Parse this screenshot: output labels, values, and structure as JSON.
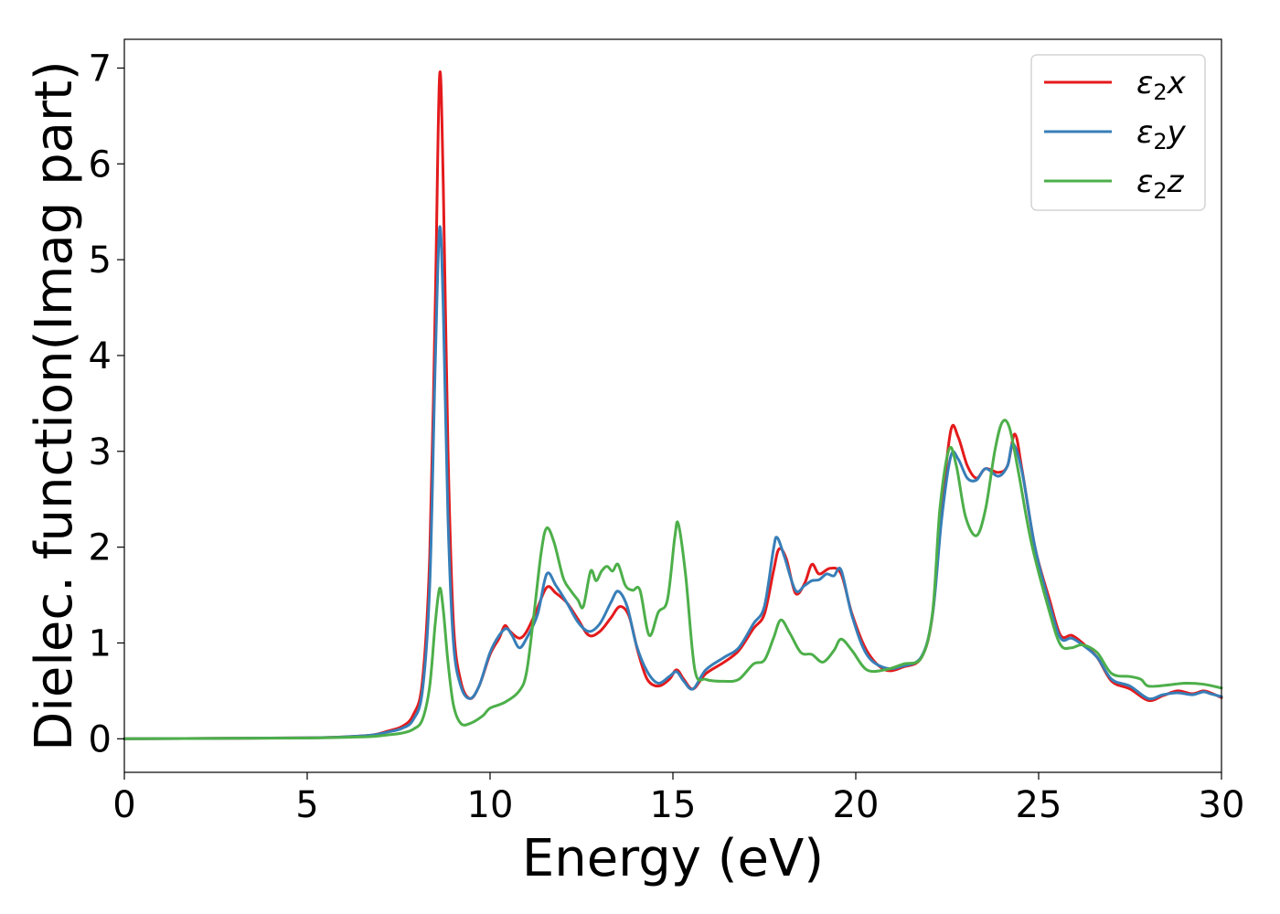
{
  "chart_data": {
    "type": "line",
    "title": "",
    "xlabel": "Energy (eV)",
    "ylabel": "Dielec. function(Imag part)",
    "xlim": [
      0,
      30
    ],
    "ylim": [
      -0.35,
      7.3
    ],
    "xticks": [
      0,
      5,
      10,
      15,
      20,
      25,
      30
    ],
    "yticks": [
      0,
      1,
      2,
      3,
      4,
      5,
      6,
      7
    ],
    "xtick_labels": [
      "0",
      "5",
      "10",
      "15",
      "20",
      "25",
      "30"
    ],
    "ytick_labels": [
      "0",
      "1",
      "2",
      "3",
      "4",
      "5",
      "6",
      "7"
    ],
    "grid": false,
    "legend": {
      "placement": "top-right"
    },
    "series": [
      {
        "name": "ε2x",
        "name_base": "ε",
        "name_sub": "2",
        "name_var": "x",
        "color": "#e41a1c",
        "points": [
          [
            0,
            0
          ],
          [
            3,
            0.005
          ],
          [
            5,
            0.01
          ],
          [
            6,
            0.02
          ],
          [
            6.8,
            0.04
          ],
          [
            7.2,
            0.08
          ],
          [
            7.6,
            0.13
          ],
          [
            7.9,
            0.25
          ],
          [
            8.15,
            0.6
          ],
          [
            8.35,
            1.9
          ],
          [
            8.5,
            4.5
          ],
          [
            8.62,
            6.92
          ],
          [
            8.72,
            5.8
          ],
          [
            8.85,
            3.0
          ],
          [
            9.0,
            1.2
          ],
          [
            9.2,
            0.6
          ],
          [
            9.45,
            0.42
          ],
          [
            9.7,
            0.55
          ],
          [
            10.0,
            0.88
          ],
          [
            10.25,
            1.05
          ],
          [
            10.4,
            1.18
          ],
          [
            10.55,
            1.12
          ],
          [
            10.8,
            1.05
          ],
          [
            11.0,
            1.12
          ],
          [
            11.25,
            1.32
          ],
          [
            11.55,
            1.58
          ],
          [
            11.8,
            1.52
          ],
          [
            12.1,
            1.42
          ],
          [
            12.4,
            1.25
          ],
          [
            12.7,
            1.08
          ],
          [
            13.0,
            1.12
          ],
          [
            13.3,
            1.26
          ],
          [
            13.55,
            1.38
          ],
          [
            13.8,
            1.28
          ],
          [
            14.05,
            0.9
          ],
          [
            14.3,
            0.62
          ],
          [
            14.6,
            0.55
          ],
          [
            14.9,
            0.62
          ],
          [
            15.1,
            0.72
          ],
          [
            15.3,
            0.62
          ],
          [
            15.55,
            0.52
          ],
          [
            15.9,
            0.68
          ],
          [
            16.4,
            0.8
          ],
          [
            16.8,
            0.92
          ],
          [
            17.2,
            1.15
          ],
          [
            17.5,
            1.3
          ],
          [
            17.75,
            1.75
          ],
          [
            17.9,
            1.98
          ],
          [
            18.1,
            1.88
          ],
          [
            18.35,
            1.52
          ],
          [
            18.6,
            1.62
          ],
          [
            18.8,
            1.82
          ],
          [
            19.0,
            1.72
          ],
          [
            19.3,
            1.78
          ],
          [
            19.6,
            1.72
          ],
          [
            19.9,
            1.3
          ],
          [
            20.3,
            0.92
          ],
          [
            20.8,
            0.72
          ],
          [
            21.3,
            0.75
          ],
          [
            21.8,
            0.85
          ],
          [
            22.1,
            1.3
          ],
          [
            22.35,
            2.4
          ],
          [
            22.6,
            3.22
          ],
          [
            22.8,
            3.15
          ],
          [
            23.05,
            2.85
          ],
          [
            23.3,
            2.72
          ],
          [
            23.55,
            2.82
          ],
          [
            23.9,
            2.78
          ],
          [
            24.15,
            2.85
          ],
          [
            24.35,
            3.18
          ],
          [
            24.55,
            2.8
          ],
          [
            24.9,
            2.0
          ],
          [
            25.3,
            1.45
          ],
          [
            25.6,
            1.08
          ],
          [
            25.9,
            1.08
          ],
          [
            26.2,
            1.0
          ],
          [
            26.6,
            0.85
          ],
          [
            27.0,
            0.6
          ],
          [
            27.5,
            0.52
          ],
          [
            28.0,
            0.4
          ],
          [
            28.4,
            0.45
          ],
          [
            28.8,
            0.5
          ],
          [
            29.2,
            0.47
          ],
          [
            29.5,
            0.5
          ],
          [
            29.7,
            0.48
          ],
          [
            30,
            0.43
          ]
        ]
      },
      {
        "name": "ε2y",
        "name_base": "ε",
        "name_sub": "2",
        "name_var": "y",
        "color": "#377eb8",
        "points": [
          [
            0,
            0
          ],
          [
            3,
            0.005
          ],
          [
            5,
            0.01
          ],
          [
            6,
            0.02
          ],
          [
            6.8,
            0.04
          ],
          [
            7.2,
            0.07
          ],
          [
            7.6,
            0.11
          ],
          [
            7.9,
            0.2
          ],
          [
            8.15,
            0.5
          ],
          [
            8.35,
            1.6
          ],
          [
            8.5,
            3.9
          ],
          [
            8.62,
            5.33
          ],
          [
            8.72,
            4.5
          ],
          [
            8.85,
            2.3
          ],
          [
            9.0,
            1.0
          ],
          [
            9.2,
            0.55
          ],
          [
            9.45,
            0.42
          ],
          [
            9.7,
            0.55
          ],
          [
            10.0,
            0.9
          ],
          [
            10.25,
            1.08
          ],
          [
            10.45,
            1.15
          ],
          [
            10.6,
            1.08
          ],
          [
            10.8,
            0.95
          ],
          [
            11.0,
            1.05
          ],
          [
            11.3,
            1.3
          ],
          [
            11.55,
            1.72
          ],
          [
            11.8,
            1.6
          ],
          [
            12.1,
            1.42
          ],
          [
            12.4,
            1.22
          ],
          [
            12.7,
            1.12
          ],
          [
            13.0,
            1.2
          ],
          [
            13.3,
            1.42
          ],
          [
            13.5,
            1.54
          ],
          [
            13.75,
            1.38
          ],
          [
            14.0,
            0.98
          ],
          [
            14.3,
            0.7
          ],
          [
            14.6,
            0.58
          ],
          [
            14.9,
            0.65
          ],
          [
            15.1,
            0.7
          ],
          [
            15.3,
            0.6
          ],
          [
            15.55,
            0.52
          ],
          [
            15.9,
            0.72
          ],
          [
            16.4,
            0.85
          ],
          [
            16.8,
            0.95
          ],
          [
            17.2,
            1.2
          ],
          [
            17.5,
            1.38
          ],
          [
            17.75,
            1.98
          ],
          [
            17.85,
            2.1
          ],
          [
            18.05,
            1.9
          ],
          [
            18.35,
            1.55
          ],
          [
            18.6,
            1.6
          ],
          [
            18.8,
            1.65
          ],
          [
            19.0,
            1.66
          ],
          [
            19.2,
            1.72
          ],
          [
            19.4,
            1.7
          ],
          [
            19.6,
            1.76
          ],
          [
            19.9,
            1.28
          ],
          [
            20.3,
            0.88
          ],
          [
            20.8,
            0.74
          ],
          [
            21.3,
            0.76
          ],
          [
            21.8,
            0.86
          ],
          [
            22.1,
            1.3
          ],
          [
            22.35,
            2.3
          ],
          [
            22.6,
            2.95
          ],
          [
            22.8,
            2.92
          ],
          [
            23.05,
            2.72
          ],
          [
            23.3,
            2.7
          ],
          [
            23.55,
            2.82
          ],
          [
            23.9,
            2.74
          ],
          [
            24.15,
            2.85
          ],
          [
            24.3,
            3.08
          ],
          [
            24.55,
            2.78
          ],
          [
            24.9,
            2.0
          ],
          [
            25.3,
            1.4
          ],
          [
            25.6,
            1.05
          ],
          [
            25.9,
            1.05
          ],
          [
            26.2,
            0.98
          ],
          [
            26.6,
            0.85
          ],
          [
            27.0,
            0.62
          ],
          [
            27.5,
            0.55
          ],
          [
            28.0,
            0.42
          ],
          [
            28.4,
            0.46
          ],
          [
            28.8,
            0.48
          ],
          [
            29.2,
            0.46
          ],
          [
            29.5,
            0.49
          ],
          [
            29.7,
            0.47
          ],
          [
            30,
            0.44
          ]
        ]
      },
      {
        "name": "ε2z",
        "name_base": "ε",
        "name_sub": "2",
        "name_var": "z",
        "color": "#4daf4a",
        "points": [
          [
            0,
            0
          ],
          [
            3,
            0.005
          ],
          [
            5,
            0.008
          ],
          [
            6,
            0.015
          ],
          [
            6.8,
            0.025
          ],
          [
            7.2,
            0.04
          ],
          [
            7.6,
            0.06
          ],
          [
            7.9,
            0.1
          ],
          [
            8.15,
            0.2
          ],
          [
            8.35,
            0.55
          ],
          [
            8.5,
            1.2
          ],
          [
            8.62,
            1.57
          ],
          [
            8.72,
            1.35
          ],
          [
            8.85,
            0.8
          ],
          [
            9.0,
            0.35
          ],
          [
            9.2,
            0.16
          ],
          [
            9.45,
            0.16
          ],
          [
            9.8,
            0.24
          ],
          [
            10.0,
            0.32
          ],
          [
            10.4,
            0.38
          ],
          [
            10.8,
            0.5
          ],
          [
            11.0,
            0.7
          ],
          [
            11.2,
            1.3
          ],
          [
            11.4,
            1.95
          ],
          [
            11.55,
            2.2
          ],
          [
            11.75,
            2.05
          ],
          [
            12.0,
            1.68
          ],
          [
            12.2,
            1.55
          ],
          [
            12.4,
            1.45
          ],
          [
            12.55,
            1.38
          ],
          [
            12.75,
            1.75
          ],
          [
            12.9,
            1.65
          ],
          [
            13.05,
            1.75
          ],
          [
            13.2,
            1.8
          ],
          [
            13.35,
            1.75
          ],
          [
            13.5,
            1.82
          ],
          [
            13.7,
            1.6
          ],
          [
            13.9,
            1.55
          ],
          [
            14.1,
            1.55
          ],
          [
            14.35,
            1.08
          ],
          [
            14.6,
            1.32
          ],
          [
            14.85,
            1.45
          ],
          [
            15.05,
            2.1
          ],
          [
            15.15,
            2.24
          ],
          [
            15.35,
            1.7
          ],
          [
            15.6,
            0.72
          ],
          [
            15.9,
            0.62
          ],
          [
            16.4,
            0.6
          ],
          [
            16.8,
            0.62
          ],
          [
            17.2,
            0.78
          ],
          [
            17.5,
            0.82
          ],
          [
            17.75,
            1.05
          ],
          [
            17.95,
            1.24
          ],
          [
            18.2,
            1.1
          ],
          [
            18.5,
            0.9
          ],
          [
            18.8,
            0.88
          ],
          [
            19.1,
            0.8
          ],
          [
            19.4,
            0.92
          ],
          [
            19.6,
            1.04
          ],
          [
            19.9,
            0.92
          ],
          [
            20.3,
            0.72
          ],
          [
            20.8,
            0.72
          ],
          [
            21.3,
            0.78
          ],
          [
            21.8,
            0.85
          ],
          [
            22.1,
            1.32
          ],
          [
            22.3,
            2.4
          ],
          [
            22.55,
            3.02
          ],
          [
            22.75,
            2.85
          ],
          [
            23.0,
            2.32
          ],
          [
            23.3,
            2.12
          ],
          [
            23.55,
            2.4
          ],
          [
            23.8,
            3.0
          ],
          [
            24.0,
            3.3
          ],
          [
            24.2,
            3.25
          ],
          [
            24.45,
            2.78
          ],
          [
            24.8,
            2.05
          ],
          [
            25.3,
            1.32
          ],
          [
            25.6,
            0.98
          ],
          [
            25.9,
            0.95
          ],
          [
            26.2,
            0.98
          ],
          [
            26.6,
            0.9
          ],
          [
            27.0,
            0.68
          ],
          [
            27.5,
            0.65
          ],
          [
            27.8,
            0.62
          ],
          [
            28.0,
            0.55
          ],
          [
            28.5,
            0.56
          ],
          [
            29.0,
            0.58
          ],
          [
            29.5,
            0.57
          ],
          [
            30,
            0.53
          ]
        ]
      }
    ]
  }
}
